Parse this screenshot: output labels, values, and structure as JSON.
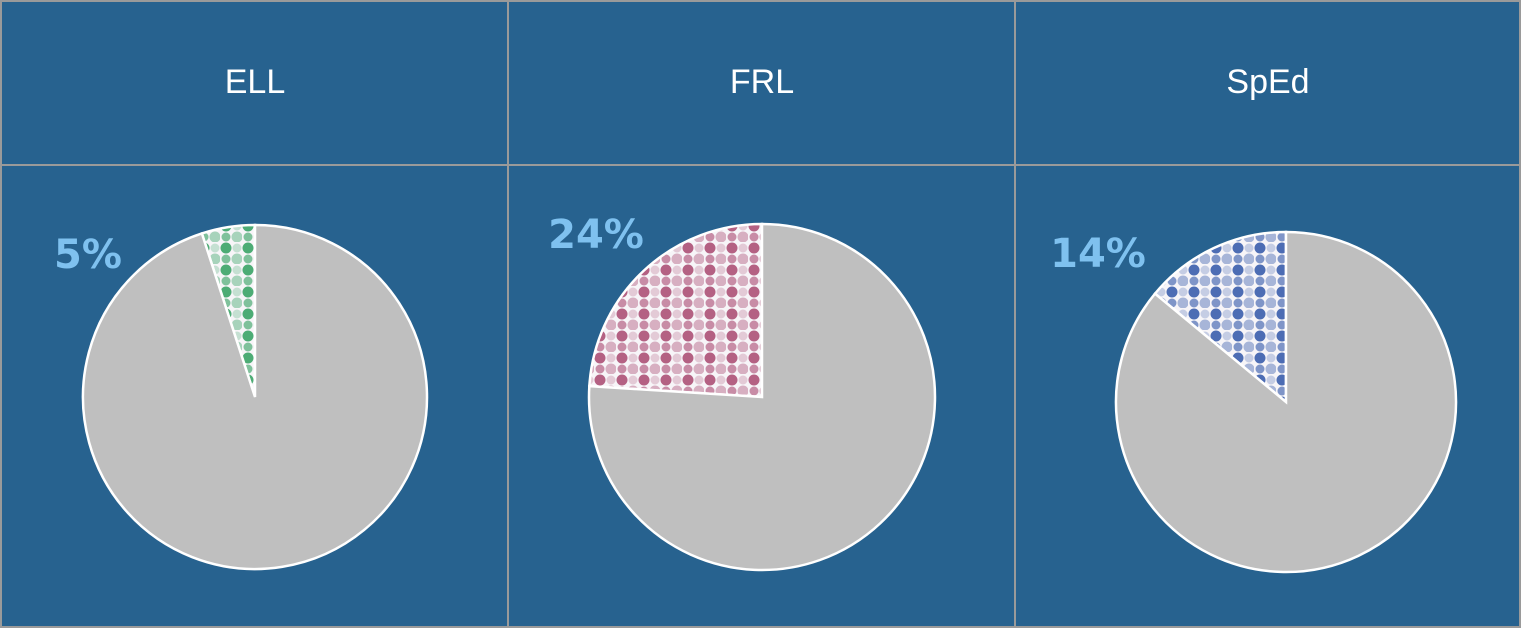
{
  "chart_data": [
    {
      "type": "pie",
      "title": "ELL",
      "values": [
        5,
        95
      ],
      "value_labels": [
        "5%",
        null
      ],
      "colors": [
        "#2f9f5e",
        "#bfbfbf"
      ]
    },
    {
      "type": "pie",
      "title": "FRL",
      "values": [
        24,
        76
      ],
      "value_labels": [
        "24%",
        null
      ],
      "colors": [
        "#a8466f",
        "#bfbfbf"
      ]
    },
    {
      "type": "pie",
      "title": "SpEd",
      "values": [
        14,
        86
      ],
      "value_labels": [
        "14%",
        null
      ],
      "colors": [
        "#2f55a8",
        "#bfbfbf"
      ]
    }
  ]
}
